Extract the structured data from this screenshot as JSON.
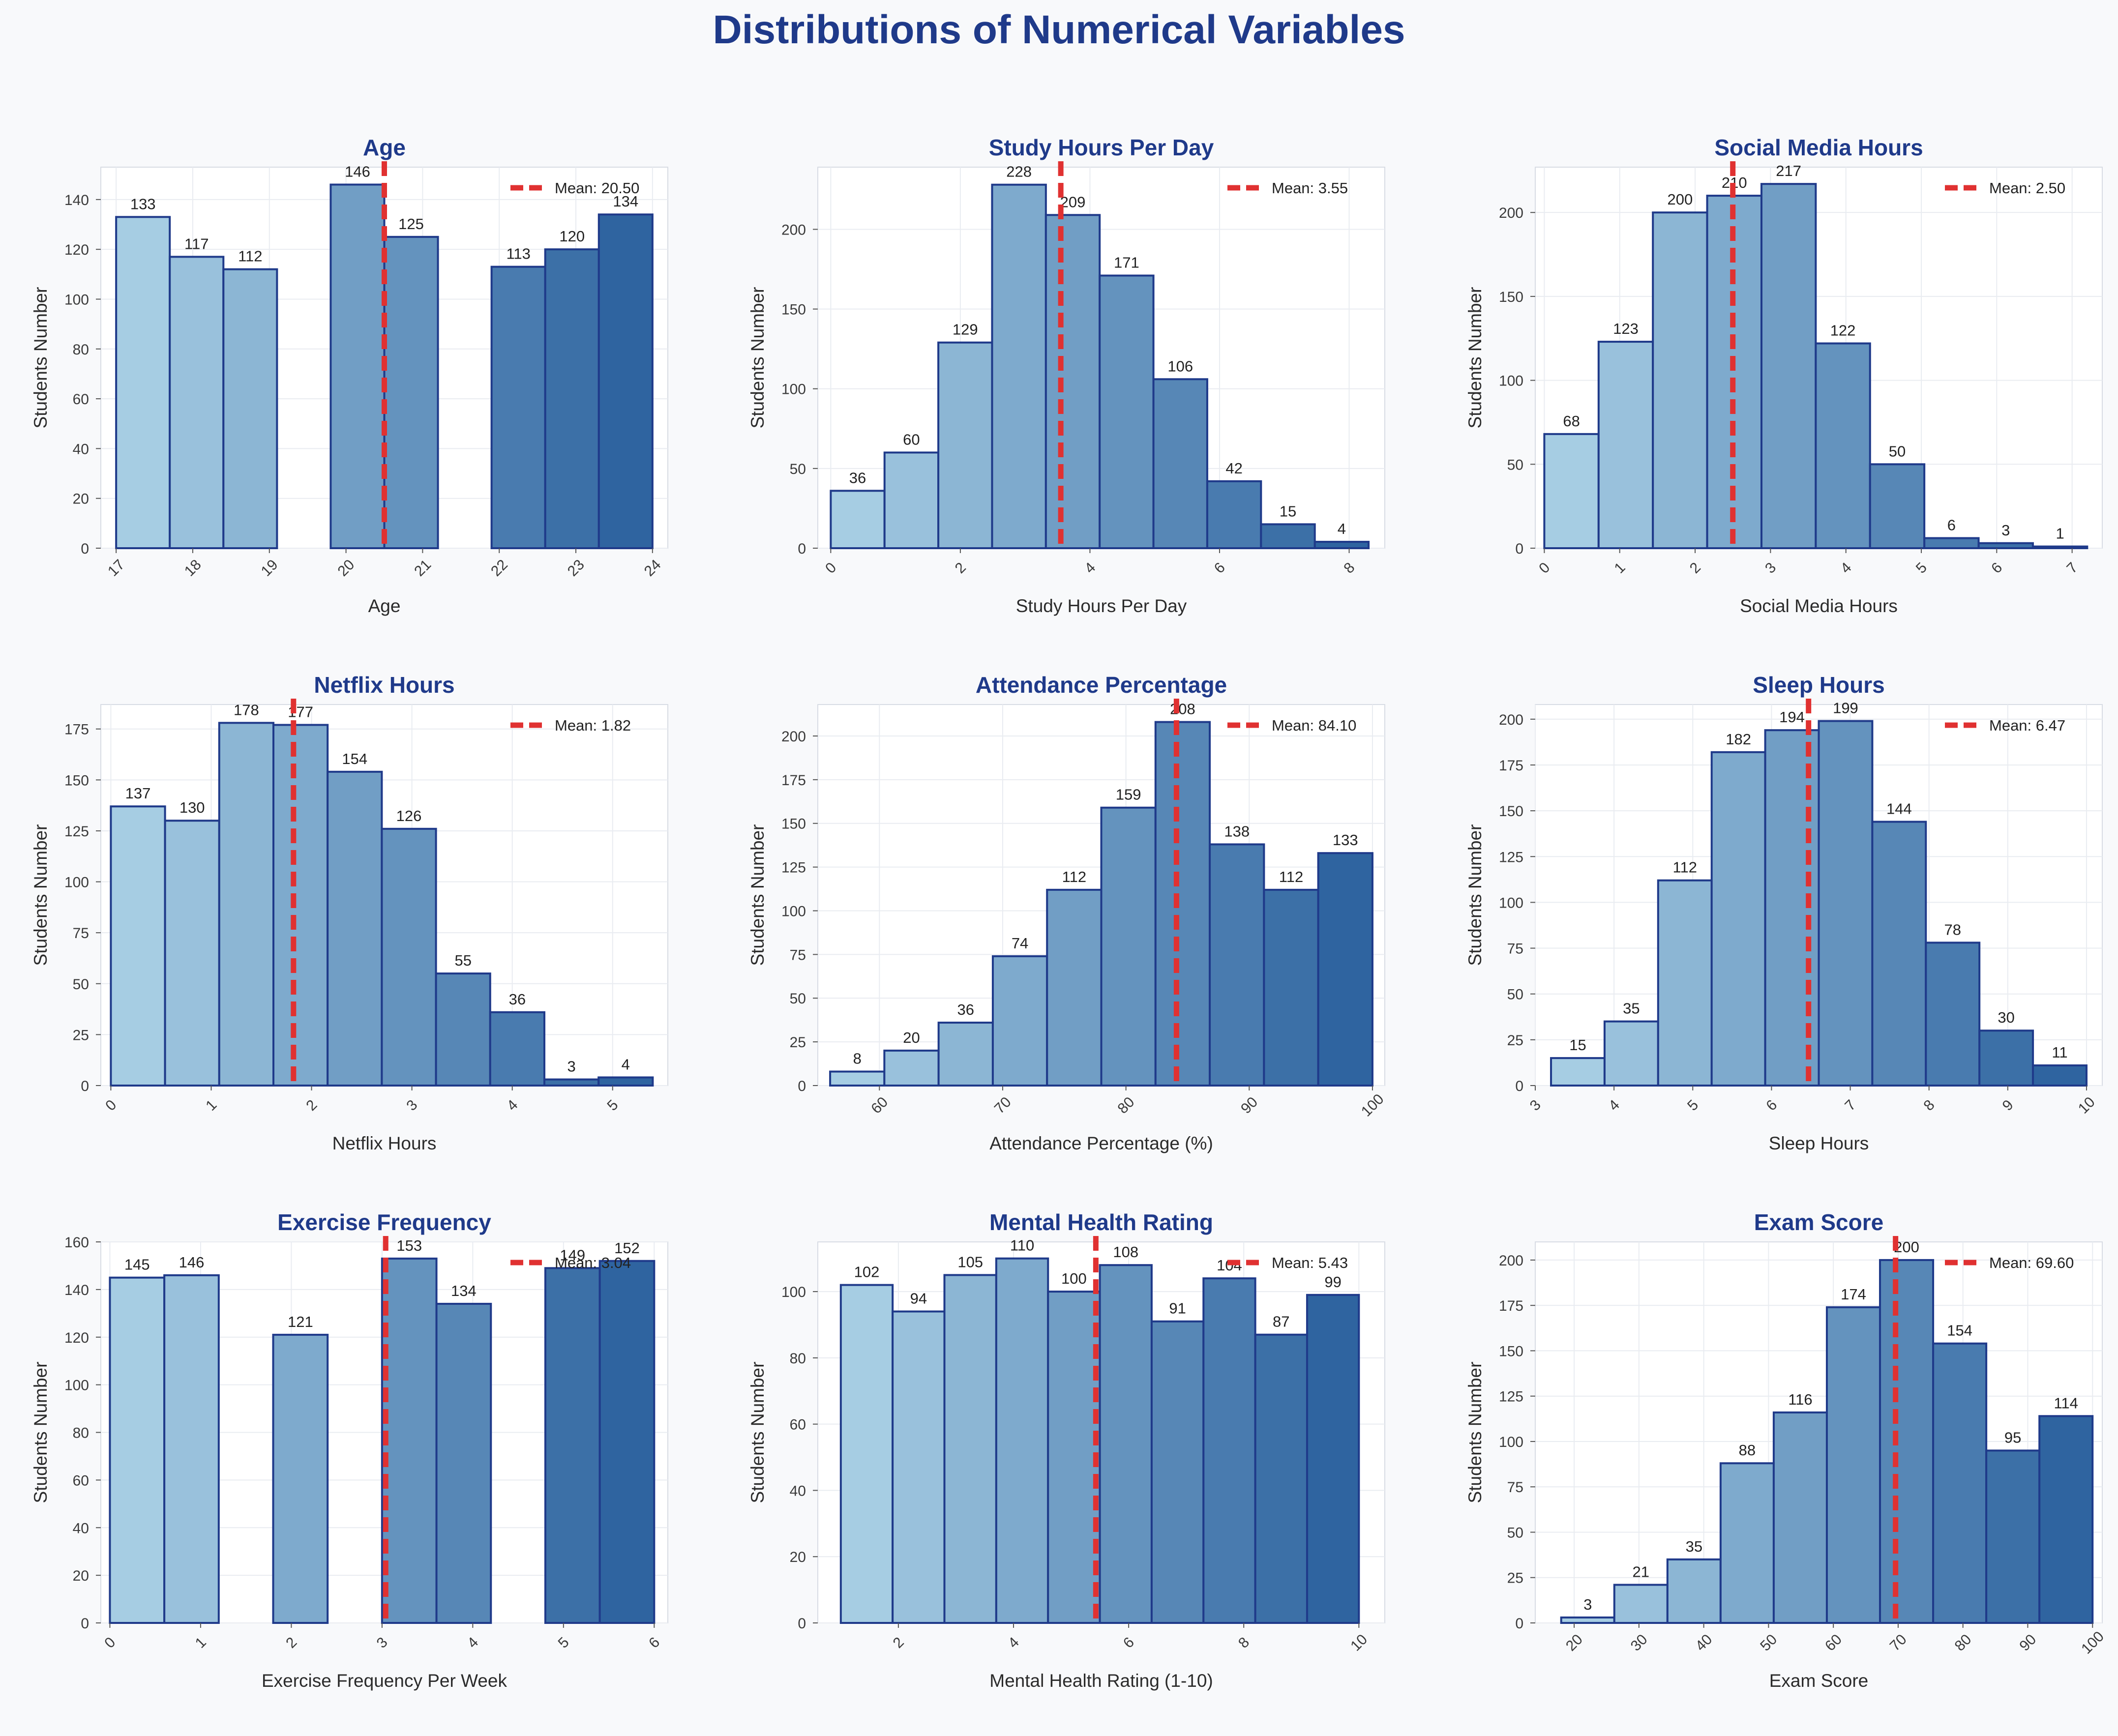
{
  "title": "Distributions of Numerical Variables",
  "legend_prefix": "Mean: ",
  "colors": {
    "title": "#1f3a8a",
    "bar_edge": "#1f3a8a",
    "mean_line": "#e03131",
    "bar_light": "#a6cde3",
    "bar_dark": "#2f64a0"
  },
  "chart_data": [
    {
      "type": "bar",
      "title": "Age",
      "xlabel": "Age",
      "ylabel": "Students Number",
      "bins": [
        [
          17,
          17.7
        ],
        [
          17.7,
          18.4
        ],
        [
          18.4,
          19.1
        ],
        [
          19.1,
          19.8
        ],
        [
          19.8,
          20.5
        ],
        [
          20.5,
          21.2
        ],
        [
          21.2,
          21.9
        ],
        [
          21.9,
          22.6
        ],
        [
          22.6,
          23.3
        ],
        [
          23.3,
          24
        ]
      ],
      "values": [
        133,
        117,
        112,
        0,
        146,
        125,
        0,
        113,
        120,
        134
      ],
      "xlim": [
        16.8,
        24.2
      ],
      "ylim": [
        0,
        153
      ],
      "xticks": [
        17,
        18,
        19,
        20,
        21,
        22,
        23,
        24
      ],
      "xtick_positions": [
        17,
        18,
        19,
        20,
        21,
        22,
        23,
        24
      ],
      "yticks": [
        0,
        20,
        40,
        60,
        80,
        100,
        120,
        140
      ],
      "mean": 20.5,
      "mean_label": "20.50",
      "mean_line_x": 20.5,
      "grid": true,
      "legend": "upper right"
    },
    {
      "type": "bar",
      "title": "Study Hours Per Day",
      "xlabel": "Study Hours Per Day",
      "ylabel": "Students Number",
      "bins": [
        [
          0,
          0.83
        ],
        [
          0.83,
          1.66
        ],
        [
          1.66,
          2.49
        ],
        [
          2.49,
          3.32
        ],
        [
          3.32,
          4.15
        ],
        [
          4.15,
          4.98
        ],
        [
          4.98,
          5.81
        ],
        [
          5.81,
          6.64
        ],
        [
          6.64,
          7.47
        ],
        [
          7.47,
          8.3
        ]
      ],
      "values": [
        36,
        60,
        129,
        228,
        209,
        171,
        106,
        42,
        15,
        4
      ],
      "xlim": [
        -0.2,
        8.55
      ],
      "ylim": [
        0,
        239
      ],
      "xticks": [
        0,
        2,
        4,
        6,
        8
      ],
      "xtick_positions": [
        0,
        2,
        4,
        6,
        8
      ],
      "yticks": [
        0,
        50,
        100,
        150,
        200
      ],
      "mean": 3.55,
      "mean_label": "3.55",
      "mean_line_x": 3.55,
      "grid": true,
      "legend": "upper right"
    },
    {
      "type": "bar",
      "title": "Social Media Hours",
      "xlabel": "Social Media Hours",
      "ylabel": "Students Number",
      "bins": [
        [
          0,
          0.72
        ],
        [
          0.72,
          1.44
        ],
        [
          1.44,
          2.16
        ],
        [
          2.16,
          2.88
        ],
        [
          2.88,
          3.6
        ],
        [
          3.6,
          4.32
        ],
        [
          4.32,
          5.04
        ],
        [
          5.04,
          5.76
        ],
        [
          5.76,
          6.48
        ],
        [
          6.48,
          7.2
        ]
      ],
      "values": [
        68,
        123,
        200,
        210,
        217,
        122,
        50,
        6,
        3,
        1
      ],
      "xlim": [
        -0.12,
        7.4
      ],
      "ylim": [
        0,
        227
      ],
      "xticks": [
        0,
        1,
        2,
        3,
        4,
        5,
        6,
        7
      ],
      "xtick_positions": [
        0,
        1,
        2,
        3,
        4,
        5,
        6,
        7
      ],
      "yticks": [
        0,
        50,
        100,
        150,
        200
      ],
      "mean": 2.5,
      "mean_label": "2.50",
      "mean_line_x": 2.5,
      "grid": true,
      "legend": "upper right"
    },
    {
      "type": "bar",
      "title": "Netflix Hours",
      "xlabel": "Netflix Hours",
      "ylabel": "Students Number",
      "bins": [
        [
          0,
          0.54
        ],
        [
          0.54,
          1.08
        ],
        [
          1.08,
          1.62
        ],
        [
          1.62,
          2.16
        ],
        [
          2.16,
          2.7
        ],
        [
          2.7,
          3.24
        ],
        [
          3.24,
          3.78
        ],
        [
          3.78,
          4.32
        ],
        [
          4.32,
          4.86
        ],
        [
          4.86,
          5.4
        ]
      ],
      "values": [
        137,
        130,
        178,
        177,
        154,
        126,
        55,
        36,
        3,
        4
      ],
      "xlim": [
        -0.1,
        5.55
      ],
      "ylim": [
        0,
        187
      ],
      "xticks": [
        0,
        1,
        2,
        3,
        4,
        5
      ],
      "xtick_positions": [
        0,
        1,
        2,
        3,
        4,
        5
      ],
      "yticks": [
        0,
        25,
        50,
        75,
        100,
        125,
        150,
        175
      ],
      "mean": 1.82,
      "mean_label": "1.82",
      "mean_line_x": 1.82,
      "grid": true,
      "legend": "upper right"
    },
    {
      "type": "bar",
      "title": "Attendance Percentage",
      "xlabel": "Attendance Percentage (%)",
      "ylabel": "Students Number",
      "bins": [
        [
          56,
          60.4
        ],
        [
          60.4,
          64.8
        ],
        [
          64.8,
          69.2
        ],
        [
          69.2,
          73.6
        ],
        [
          73.6,
          78
        ],
        [
          78,
          82.4
        ],
        [
          82.4,
          86.8
        ],
        [
          86.8,
          91.2
        ],
        [
          91.2,
          95.6
        ],
        [
          95.6,
          100
        ]
      ],
      "values": [
        8,
        20,
        36,
        74,
        112,
        159,
        208,
        138,
        112,
        133
      ],
      "xlim": [
        55,
        101
      ],
      "ylim": [
        0,
        218
      ],
      "xticks": [
        60,
        70,
        80,
        90,
        100
      ],
      "xtick_positions": [
        60,
        70,
        80,
        90,
        100
      ],
      "yticks": [
        0,
        25,
        50,
        75,
        100,
        125,
        150,
        175,
        200
      ],
      "mean": 84.1,
      "mean_label": "84.10",
      "mean_line_x": 84.1,
      "grid": true,
      "legend": "upper right"
    },
    {
      "type": "bar",
      "title": "Sleep Hours",
      "xlabel": "Sleep Hours",
      "ylabel": "Students Number",
      "bins": [
        [
          3.2,
          3.88
        ],
        [
          3.88,
          4.56
        ],
        [
          4.56,
          5.24
        ],
        [
          5.24,
          5.92
        ],
        [
          5.92,
          6.6
        ],
        [
          6.6,
          7.28
        ],
        [
          7.28,
          7.96
        ],
        [
          7.96,
          8.64
        ],
        [
          8.64,
          9.32
        ],
        [
          9.32,
          10
        ]
      ],
      "values": [
        15,
        35,
        112,
        182,
        194,
        199,
        144,
        78,
        30,
        11
      ],
      "xlim": [
        3,
        10.2
      ],
      "ylim": [
        0,
        208
      ],
      "xticks": [
        3,
        4,
        5,
        6,
        7,
        8,
        9,
        10
      ],
      "xtick_positions": [
        3,
        4,
        5,
        6,
        7,
        8,
        9,
        10
      ],
      "yticks": [
        0,
        25,
        50,
        75,
        100,
        125,
        150,
        175,
        200
      ],
      "mean": 6.47,
      "mean_label": "6.47",
      "mean_line_x": 6.47,
      "grid": true,
      "legend": "upper right"
    },
    {
      "type": "bar",
      "title": "Exercise Frequency",
      "xlabel": "Exercise Frequency Per Week",
      "ylabel": "Students Number",
      "bins": [
        [
          0,
          0.6
        ],
        [
          0.6,
          1.2
        ],
        [
          1.2,
          1.8
        ],
        [
          1.8,
          2.4
        ],
        [
          2.4,
          3
        ],
        [
          3,
          3.6
        ],
        [
          3.6,
          4.2
        ],
        [
          4.2,
          4.8
        ],
        [
          4.8,
          5.4
        ],
        [
          5.4,
          6
        ]
      ],
      "values": [
        145,
        146,
        0,
        121,
        0,
        153,
        134,
        0,
        149,
        152
      ],
      "xlim": [
        -0.1,
        6.15
      ],
      "ylim": [
        0,
        160
      ],
      "xticks": [
        0,
        1,
        2,
        3,
        4,
        5,
        6
      ],
      "xtick_positions": [
        0,
        1,
        2,
        3,
        4,
        5,
        6
      ],
      "yticks": [
        0,
        20,
        40,
        60,
        80,
        100,
        120,
        140,
        160
      ],
      "mean": 3.04,
      "mean_label": "3.04",
      "mean_line_x": 3.04,
      "grid": true,
      "legend": "upper right"
    },
    {
      "type": "bar",
      "title": "Mental Health Rating",
      "xlabel": "Mental Health Rating (1-10)",
      "ylabel": "Students Number",
      "bins": [
        [
          1,
          1.9
        ],
        [
          1.9,
          2.8
        ],
        [
          2.8,
          3.7
        ],
        [
          3.7,
          4.6
        ],
        [
          4.6,
          5.5
        ],
        [
          5.5,
          6.4
        ],
        [
          6.4,
          7.3
        ],
        [
          7.3,
          8.2
        ],
        [
          8.2,
          9.1
        ],
        [
          9.1,
          10
        ]
      ],
      "values": [
        102,
        94,
        105,
        110,
        100,
        108,
        91,
        104,
        87,
        99
      ],
      "xlim": [
        0.6,
        10.45
      ],
      "ylim": [
        0,
        115
      ],
      "xticks": [
        2,
        4,
        6,
        8,
        10
      ],
      "xtick_positions": [
        2,
        4,
        6,
        8,
        10
      ],
      "yticks": [
        0,
        20,
        40,
        60,
        80,
        100
      ],
      "mean": 5.43,
      "mean_label": "5.43",
      "mean_line_x": 5.43,
      "grid": true,
      "legend": "upper right"
    },
    {
      "type": "bar",
      "title": "Exam Score",
      "xlabel": "Exam Score",
      "ylabel": "Students Number",
      "bins": [
        [
          18,
          26.2
        ],
        [
          26.2,
          34.4
        ],
        [
          34.4,
          42.6
        ],
        [
          42.6,
          50.8
        ],
        [
          50.8,
          59
        ],
        [
          59,
          67.2
        ],
        [
          67.2,
          75.4
        ],
        [
          75.4,
          83.6
        ],
        [
          83.6,
          91.8
        ],
        [
          91.8,
          100
        ]
      ],
      "values": [
        3,
        21,
        35,
        88,
        116,
        174,
        200,
        154,
        95,
        114
      ],
      "xlim": [
        14,
        101.5
      ],
      "ylim": [
        0,
        210
      ],
      "xticks": [
        20,
        30,
        40,
        50,
        60,
        70,
        80,
        90,
        100
      ],
      "xtick_positions": [
        20,
        30,
        40,
        50,
        60,
        70,
        80,
        90,
        100
      ],
      "yticks": [
        0,
        25,
        50,
        75,
        100,
        125,
        150,
        175,
        200
      ],
      "mean": 69.6,
      "mean_label": "69.60",
      "mean_line_x": 69.6,
      "grid": true,
      "legend": "upper right"
    }
  ]
}
